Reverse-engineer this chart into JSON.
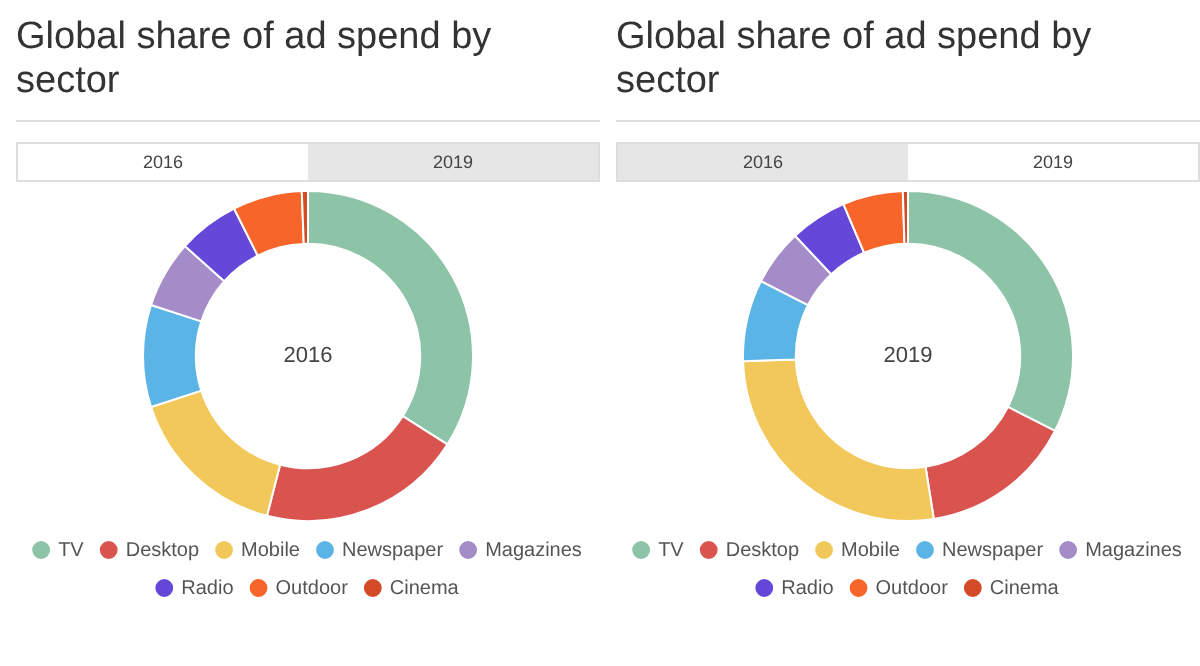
{
  "chart_data": [
    {
      "type": "donut",
      "title": "Global share of ad spend by sector",
      "subtitle": "2016",
      "annotations": [
        "2016",
        "2019"
      ],
      "categories": [
        "TV",
        "Desktop",
        "Mobile",
        "Newspaper",
        "Magazines",
        "Radio",
        "Outdoor",
        "Cinema"
      ],
      "values": [
        34,
        20,
        16,
        10,
        6.6,
        6,
        6.8,
        0.6
      ],
      "colors": [
        "#8dc3a7",
        "#d9534f",
        "#f2c85b",
        "#5ab4e5",
        "#a48cc8",
        "#6548d8",
        "#f7652b",
        "#d44a26"
      ],
      "legend": "bottom"
    },
    {
      "type": "donut",
      "title": "Global share of ad spend by sector",
      "subtitle": "2019",
      "annotations": [
        "2016",
        "2019"
      ],
      "categories": [
        "TV",
        "Desktop",
        "Mobile",
        "Newspaper",
        "Magazines",
        "Radio",
        "Outdoor",
        "Cinema"
      ],
      "values": [
        32.5,
        15,
        27,
        8,
        5.5,
        5.6,
        5.9,
        0.5
      ],
      "colors": [
        "#8dc3a7",
        "#d9534f",
        "#f2c85b",
        "#5ab4e5",
        "#a48cc8",
        "#6548d8",
        "#f7652b",
        "#d44a26"
      ],
      "legend": "bottom"
    }
  ]
}
